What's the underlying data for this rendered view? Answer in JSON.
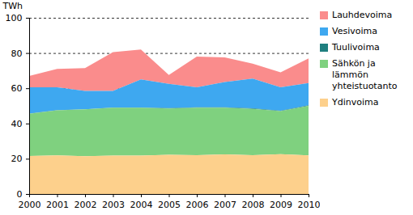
{
  "chart_data": {
    "type": "area",
    "stacked": true,
    "grid": true,
    "legend": "right",
    "y_label": "TWh",
    "x": [
      2000,
      2001,
      2002,
      2003,
      2004,
      2005,
      2006,
      2007,
      2008,
      2009,
      2010
    ],
    "xlim": [
      2000,
      2010
    ],
    "xticks": [
      2000,
      2001,
      2002,
      2003,
      2004,
      2005,
      2006,
      2007,
      2008,
      2009,
      2010
    ],
    "ylim": [
      0,
      100
    ],
    "yticks": [
      0,
      20,
      40,
      60,
      80,
      100
    ],
    "series": [
      {
        "name": "Lauhdevoima",
        "color": "#fa8c8c",
        "values": [
          6.5,
          10.5,
          13,
          22,
          17,
          5,
          17.5,
          14,
          8.5,
          8.5,
          14
        ]
      },
      {
        "name": "Vesivoima",
        "color": "#3ea8f0",
        "values": [
          14.9,
          12.9,
          10.4,
          9.4,
          15.9,
          13.8,
          11.3,
          14.3,
          16.9,
          13.2,
          12.7
        ]
      },
      {
        "name": "Tuulivoima",
        "color": "#1f7f7f",
        "values": [
          0.1,
          0.1,
          0.1,
          0.1,
          0.1,
          0.2,
          0.2,
          0.2,
          0.3,
          0.3,
          0.3
        ]
      },
      {
        "name": "Sähkön ja lämmön yhteistuotanto",
        "color": "#7fd17f",
        "values": [
          23.9,
          25.6,
          26.6,
          27.2,
          27.2,
          26.2,
          27,
          26.5,
          26.3,
          24.4,
          28.1
        ]
      },
      {
        "name": "Ydinvoima",
        "color": "#fdd08c",
        "values": [
          21.6,
          21.9,
          21.4,
          21.8,
          21.8,
          22.3,
          22,
          22.5,
          22,
          22.6,
          21.9
        ]
      }
    ]
  }
}
